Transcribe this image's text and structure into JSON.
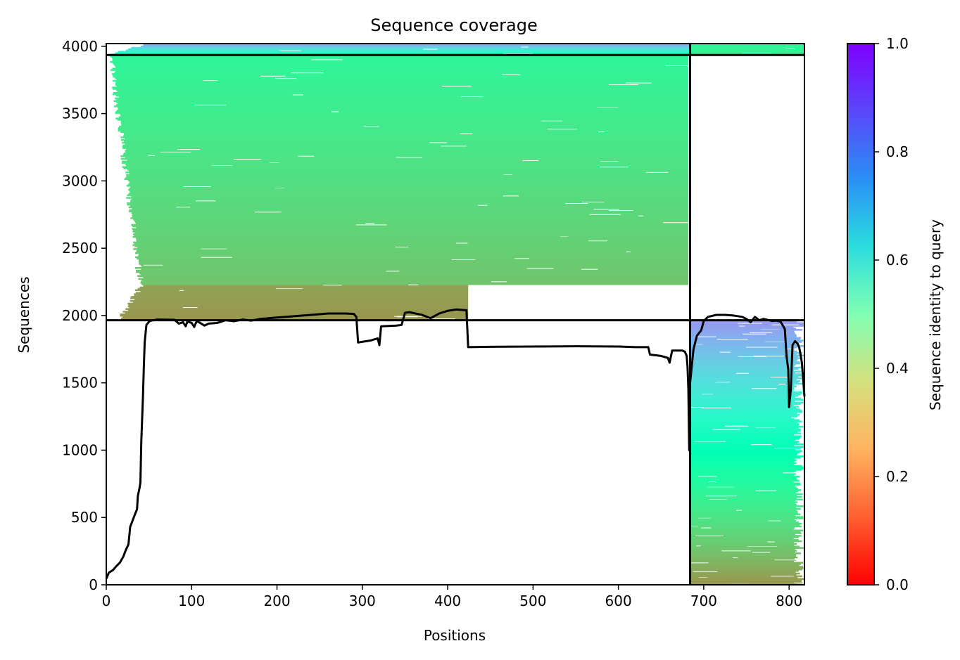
{
  "chart_data": {
    "type": "heatmap",
    "title": "Sequence coverage",
    "xlabel": "Positions",
    "ylabel": "Sequences",
    "xlim": [
      0,
      818
    ],
    "ylim": [
      0,
      4020
    ],
    "x_ticks": [
      0,
      100,
      200,
      300,
      400,
      500,
      600,
      700,
      800
    ],
    "y_ticks": [
      0,
      500,
      1000,
      1500,
      2000,
      2500,
      3000,
      3500,
      4000
    ],
    "grid": false,
    "colorbar": {
      "label": "Sequence identity to query",
      "colormap": "rainbow_r",
      "range": [
        0,
        1
      ],
      "ticks": [
        0.0,
        0.2,
        0.4,
        0.6,
        0.8,
        1.0
      ],
      "tick_labels": [
        "0.0",
        "0.2",
        "0.4",
        "0.6",
        "0.8",
        "1.0"
      ],
      "placement": "right"
    },
    "divider_lines": {
      "vertical_x": 684,
      "horizontal_y_left": [
        1965,
        3935
      ],
      "horizontal_y_right": [
        1965,
        3935
      ]
    },
    "coverage_blocks": [
      {
        "name": "left domain, group A",
        "x_range": [
          0,
          684
        ],
        "seq_range": [
          1965,
          2230
        ],
        "x_start_range": [
          15,
          42
        ],
        "x_end": 424,
        "identity_range": [
          0.2,
          0.22
        ]
      },
      {
        "name": "left domain, group B",
        "x_range": [
          0,
          684
        ],
        "seq_range": [
          2230,
          3935
        ],
        "x_start_range": [
          40,
          5
        ],
        "x_end": 682,
        "identity_range": [
          0.28,
          0.41
        ]
      },
      {
        "name": "left domain, group C",
        "x_range": [
          0,
          684
        ],
        "seq_range": [
          3935,
          4020
        ],
        "x_start_range": [
          5,
          50
        ],
        "x_end": 684,
        "identity_range": [
          0.5,
          0.8
        ]
      },
      {
        "name": "right domain, group A",
        "x_range": [
          684,
          818
        ],
        "seq_range": [
          0,
          1965
        ],
        "x_end_range": [
          805,
          818
        ],
        "identity_range": [
          0.2,
          0.8
        ]
      },
      {
        "name": "right domain, group C",
        "x_range": [
          684,
          818
        ],
        "seq_range": [
          3935,
          4020
        ],
        "identity_range": [
          0.38,
          0.42
        ]
      }
    ],
    "coverage_line": {
      "color": "#000000",
      "points": [
        [
          0,
          45
        ],
        [
          3,
          90
        ],
        [
          8,
          110
        ],
        [
          12,
          140
        ],
        [
          16,
          165
        ],
        [
          20,
          210
        ],
        [
          23,
          260
        ],
        [
          26,
          300
        ],
        [
          28,
          430
        ],
        [
          31,
          480
        ],
        [
          34,
          530
        ],
        [
          36,
          560
        ],
        [
          37,
          660
        ],
        [
          39,
          720
        ],
        [
          40,
          760
        ],
        [
          41,
          1060
        ],
        [
          43,
          1400
        ],
        [
          44,
          1620
        ],
        [
          45,
          1800
        ],
        [
          47,
          1930
        ],
        [
          51,
          1960
        ],
        [
          60,
          1970
        ],
        [
          80,
          1968
        ],
        [
          85,
          1940
        ],
        [
          90,
          1950
        ],
        [
          93,
          1920
        ],
        [
          95,
          1955
        ],
        [
          100,
          1945
        ],
        [
          103,
          1915
        ],
        [
          106,
          1960
        ],
        [
          110,
          1945
        ],
        [
          115,
          1925
        ],
        [
          120,
          1940
        ],
        [
          130,
          1945
        ],
        [
          140,
          1965
        ],
        [
          150,
          1958
        ],
        [
          160,
          1970
        ],
        [
          170,
          1962
        ],
        [
          180,
          1975
        ],
        [
          200,
          1985
        ],
        [
          220,
          1995
        ],
        [
          240,
          2005
        ],
        [
          250,
          2010
        ],
        [
          260,
          2015
        ],
        [
          280,
          2015
        ],
        [
          290,
          2012
        ],
        [
          293,
          1990
        ],
        [
          295,
          1800
        ],
        [
          310,
          1815
        ],
        [
          318,
          1830
        ],
        [
          320,
          1780
        ],
        [
          322,
          1920
        ],
        [
          340,
          1925
        ],
        [
          346,
          1930
        ],
        [
          350,
          2020
        ],
        [
          355,
          2025
        ],
        [
          370,
          2005
        ],
        [
          380,
          1980
        ],
        [
          390,
          2015
        ],
        [
          400,
          2035
        ],
        [
          410,
          2045
        ],
        [
          420,
          2040
        ],
        [
          422,
          2040
        ],
        [
          424,
          1765
        ],
        [
          450,
          1768
        ],
        [
          500,
          1770
        ],
        [
          550,
          1772
        ],
        [
          600,
          1770
        ],
        [
          620,
          1765
        ],
        [
          635,
          1765
        ],
        [
          637,
          1710
        ],
        [
          650,
          1700
        ],
        [
          658,
          1685
        ],
        [
          660,
          1650
        ],
        [
          663,
          1740
        ],
        [
          675,
          1740
        ],
        [
          678,
          1730
        ],
        [
          680,
          1700
        ],
        [
          681,
          1620
        ],
        [
          682,
          1450
        ],
        [
          683,
          1000
        ],
        [
          684,
          1500
        ],
        [
          688,
          1750
        ],
        [
          692,
          1850
        ],
        [
          697,
          1890
        ],
        [
          700,
          1960
        ],
        [
          705,
          1990
        ],
        [
          715,
          2005
        ],
        [
          725,
          2005
        ],
        [
          735,
          2000
        ],
        [
          745,
          1990
        ],
        [
          750,
          1975
        ],
        [
          755,
          1950
        ],
        [
          760,
          1990
        ],
        [
          765,
          1965
        ],
        [
          770,
          1975
        ],
        [
          780,
          1960
        ],
        [
          785,
          1962
        ],
        [
          790,
          1955
        ],
        [
          795,
          1900
        ],
        [
          797,
          1700
        ],
        [
          799,
          1600
        ],
        [
          800,
          1320
        ],
        [
          802,
          1450
        ],
        [
          804,
          1780
        ],
        [
          807,
          1810
        ],
        [
          810,
          1790
        ],
        [
          812,
          1760
        ],
        [
          815,
          1650
        ],
        [
          818,
          1400
        ]
      ]
    }
  }
}
